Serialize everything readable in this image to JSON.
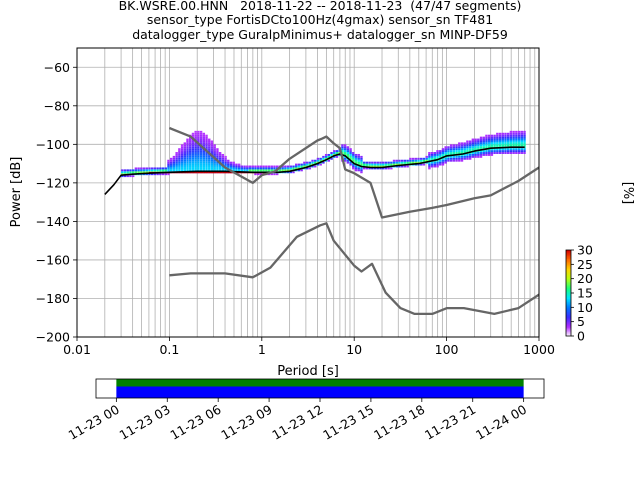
{
  "title": {
    "line1": "BK.WSRE.00.HNN   2018-11-22 -- 2018-11-23  (47/47 segments)",
    "line2": "sensor_type FortisDCto100Hz(4gmax) sensor_sn TF481",
    "line3": "datalogger_type GuralpMinimus+ datalogger_sn MINP-DF59"
  },
  "chart_data": [
    {
      "type": "heatmap",
      "xlabel": "Period [s]",
      "ylabel": "Power [dB]",
      "x_scale": "log",
      "xlim": [
        0.01,
        1000
      ],
      "ylim": [
        -200,
        -50
      ],
      "x_ticks": [
        "0.01",
        "0.1",
        "1",
        "10",
        "100",
        "1000"
      ],
      "x_tick_values": [
        0.01,
        0.1,
        1,
        10,
        100,
        1000
      ],
      "y_ticks": [
        "−60",
        "−80",
        "−100",
        "−120",
        "−140",
        "−160",
        "−180",
        "−200"
      ],
      "y_tick_values": [
        -60,
        -80,
        -100,
        -120,
        -140,
        -160,
        -180,
        -200
      ],
      "grid": true,
      "colorbar": {
        "label": "[%]",
        "ticks": [
          "0",
          "5",
          "10",
          "15",
          "20",
          "25",
          "30"
        ],
        "tick_values": [
          0,
          5,
          10,
          15,
          20,
          25,
          30
        ],
        "range": [
          0,
          30
        ],
        "colors": [
          "#ffffff",
          "#b02cff",
          "#3a2cff",
          "#0078ff",
          "#00e6ff",
          "#19ff7a",
          "#b6ff12",
          "#ffd400",
          "#ff6a00",
          "#d60000"
        ]
      },
      "series": [
        {
          "name": "",
          "role": "mode-curve",
          "color": "#000000",
          "x": [
            0.02,
            0.025,
            0.03,
            0.04,
            0.06,
            0.1,
            0.2,
            0.4,
            0.8,
            1.5,
            2,
            3,
            4,
            5,
            6,
            7,
            8,
            10,
            12,
            15,
            20,
            30,
            50,
            80,
            100,
            150,
            200,
            300,
            500,
            700
          ],
          "y": [
            -126,
            -121,
            -116,
            -115.5,
            -115,
            -114.5,
            -114,
            -114,
            -114.5,
            -114.5,
            -114,
            -112,
            -110,
            -108,
            -106,
            -105,
            -106,
            -110,
            -111.5,
            -112,
            -112,
            -111,
            -110,
            -108,
            -106,
            -105,
            -103.5,
            -102,
            -101.5,
            -101.5
          ]
        },
        {
          "name": "",
          "role": "noise-model-high-upper",
          "color": "#666666",
          "x": [
            0.1,
            0.17,
            0.4,
            0.8,
            1,
            1.4,
            2,
            4,
            4.5,
            5,
            6,
            7,
            8,
            10,
            15,
            20,
            40,
            70,
            100,
            200,
            300,
            600,
            1000
          ],
          "y": [
            -91.5,
            -96,
            -112,
            -120,
            -116,
            -114,
            -107.5,
            -98,
            -97,
            -96,
            -99.5,
            -102,
            -113,
            -115,
            -120,
            -138,
            -135,
            -133,
            -131.5,
            -128,
            -126.5,
            -119,
            -112
          ]
        },
        {
          "name": "",
          "role": "noise-model-low-lower",
          "color": "#666666",
          "x": [
            0.1,
            0.17,
            0.4,
            0.8,
            1.24,
            2.4,
            4.3,
            5,
            6,
            10,
            12,
            15.6,
            21.9,
            31.6,
            45,
            70,
            101,
            154,
            328,
            600,
            1000
          ],
          "y": [
            -168,
            -167,
            -167,
            -169,
            -164,
            -148,
            -142,
            -141,
            -150,
            -163,
            -166,
            -162,
            -177,
            -185,
            -188,
            -188,
            -185,
            -185,
            -188,
            -185,
            -178
          ]
        }
      ]
    },
    {
      "type": "bar",
      "role": "data-availability-timeline",
      "x_ticks": [
        "11-23 00",
        "11-23 03",
        "11-23 06",
        "11-23 09",
        "11-23 12",
        "11-23 15",
        "11-23 18",
        "11-23 21",
        "11-24 00"
      ],
      "x_tick_values_hours": [
        0,
        3,
        6,
        9,
        12,
        15,
        18,
        21,
        24
      ],
      "xlim_hours": [
        -1.2,
        25.2
      ],
      "bars": [
        {
          "role": "available",
          "color": "#008000",
          "start_hours": 0,
          "end_hours": 24
        },
        {
          "role": "used",
          "color": "#0000ff",
          "start_hours": 0,
          "end_hours": 24
        }
      ]
    }
  ]
}
